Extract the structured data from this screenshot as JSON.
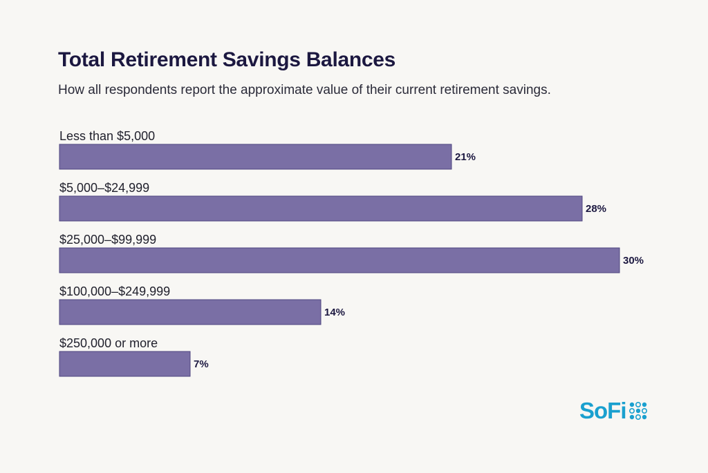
{
  "chart_data": {
    "type": "bar",
    "orientation": "horizontal",
    "title": "Total Retirement Savings Balances",
    "subtitle": "How all respondents report the approximate value of their current retirement savings.",
    "categories": [
      "Less than $5,000",
      "$5,000–$24,999",
      "$25,000–$99,999",
      "$100,000–$249,999",
      "$250,000 or more"
    ],
    "values": [
      21,
      28,
      30,
      14,
      7
    ],
    "value_labels": [
      "21%",
      "28%",
      "30%",
      "14%",
      "7%"
    ],
    "unit": "%",
    "xlim": [
      0,
      30
    ],
    "grid": false,
    "legend": "none",
    "bar_color": "#7a6fa5",
    "bar_edge_color": "#4e4680"
  },
  "branding": {
    "logo_text": "SoFi",
    "logo_color": "#1aa0cf",
    "logo_icon": "sofi-dots-icon"
  }
}
